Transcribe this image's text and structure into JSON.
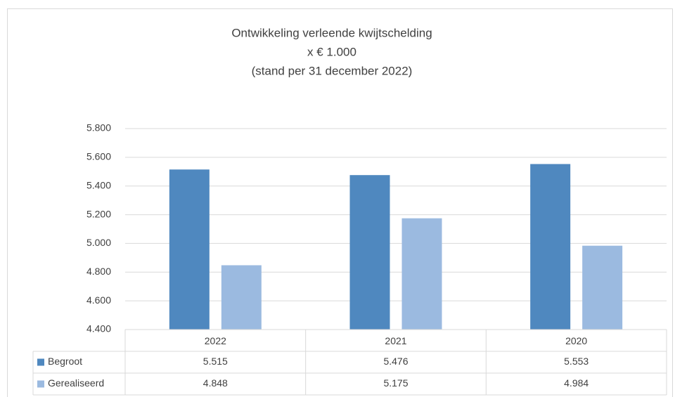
{
  "chart_data": {
    "type": "bar",
    "title": [
      "Ontwikkeling verleende kwijtschelding",
      "x € 1.000",
      "(stand per 31 december 2022)"
    ],
    "categories": [
      "2022",
      "2021",
      "2020"
    ],
    "series": [
      {
        "name": "Begroot",
        "color": "#4f88bf",
        "values": [
          5515,
          5476,
          5553
        ],
        "value_labels": [
          "5.515",
          "5.476",
          "5.553"
        ]
      },
      {
        "name": "Gerealiseerd",
        "color": "#9bbae0",
        "values": [
          4848,
          5175,
          4984
        ],
        "value_labels": [
          "4.848",
          "5.175",
          "4.984"
        ]
      }
    ],
    "ylim": [
      4400,
      5800
    ],
    "yticks": [
      {
        "value": 4400,
        "label": "4.400"
      },
      {
        "value": 4600,
        "label": "4.600"
      },
      {
        "value": 4800,
        "label": "4.800"
      },
      {
        "value": 5000,
        "label": "5.000"
      },
      {
        "value": 5200,
        "label": "5.200"
      },
      {
        "value": 5400,
        "label": "5.400"
      },
      {
        "value": 5600,
        "label": "5.600"
      },
      {
        "value": 5800,
        "label": "5.800"
      }
    ],
    "grid": true
  }
}
